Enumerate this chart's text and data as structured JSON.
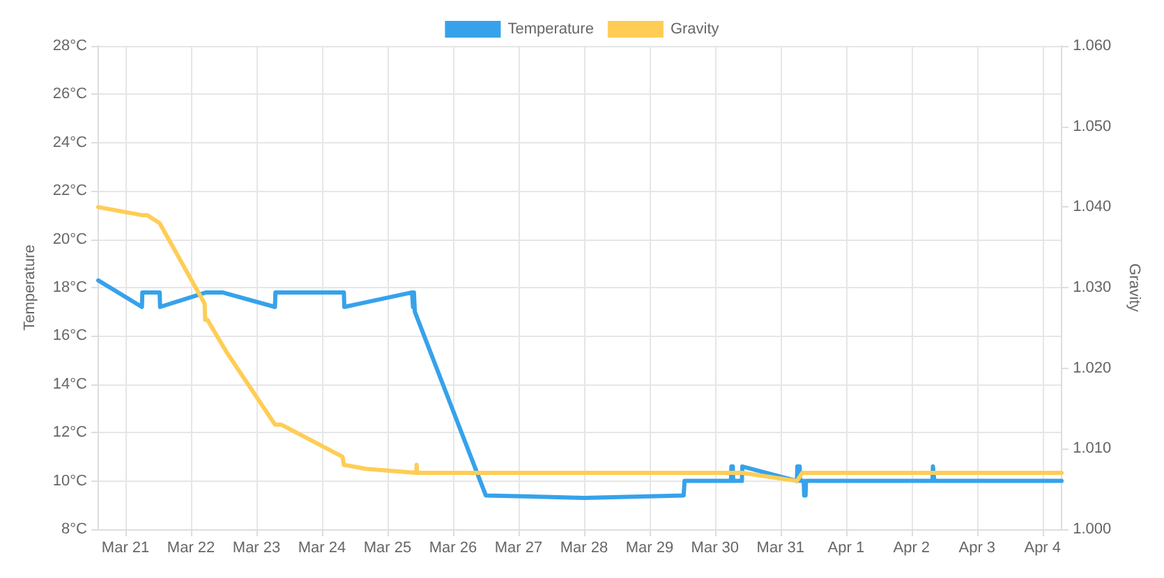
{
  "chart_data": {
    "type": "line",
    "ylabel": "Temperature",
    "y2label": "Gravity",
    "legend": "top",
    "grid": true,
    "marker": "none",
    "line_style": "solid",
    "xlim": [
      "--03-20T14:00",
      "--04-04T07:00"
    ],
    "xticks": [
      {
        "value": "--03-21",
        "label": "Mar 21"
      },
      {
        "value": "--03-22",
        "label": "Mar 22"
      },
      {
        "value": "--03-23",
        "label": "Mar 23"
      },
      {
        "value": "--03-24",
        "label": "Mar 24"
      },
      {
        "value": "--03-25",
        "label": "Mar 25"
      },
      {
        "value": "--03-26",
        "label": "Mar 26"
      },
      {
        "value": "--03-27",
        "label": "Mar 27"
      },
      {
        "value": "--03-28",
        "label": "Mar 28"
      },
      {
        "value": "--03-29",
        "label": "Mar 29"
      },
      {
        "value": "--03-30",
        "label": "Mar 30"
      },
      {
        "value": "--03-31",
        "label": "Mar 31"
      },
      {
        "value": "--04-01",
        "label": "Apr 1"
      },
      {
        "value": "--04-02",
        "label": "Apr 2"
      },
      {
        "value": "--04-03",
        "label": "Apr 3"
      },
      {
        "value": "--04-04",
        "label": "Apr 4"
      }
    ],
    "ylim": [
      8,
      28
    ],
    "yticks": [
      {
        "value": 8,
        "label": "8°C"
      },
      {
        "value": 10,
        "label": "10°C"
      },
      {
        "value": 12,
        "label": "12°C"
      },
      {
        "value": 14,
        "label": "14°C"
      },
      {
        "value": 16,
        "label": "16°C"
      },
      {
        "value": 18,
        "label": "18°C"
      },
      {
        "value": 20,
        "label": "20°C"
      },
      {
        "value": 22,
        "label": "22°C"
      },
      {
        "value": 24,
        "label": "24°C"
      },
      {
        "value": 26,
        "label": "26°C"
      },
      {
        "value": 28,
        "label": "28°C"
      }
    ],
    "y2lim": [
      1.0,
      1.06
    ],
    "y2ticks": [
      {
        "value": 1.0,
        "label": "1.000"
      },
      {
        "value": 1.01,
        "label": "1.010"
      },
      {
        "value": 1.02,
        "label": "1.020"
      },
      {
        "value": 1.03,
        "label": "1.030"
      },
      {
        "value": 1.04,
        "label": "1.040"
      },
      {
        "value": 1.05,
        "label": "1.050"
      },
      {
        "value": 1.06,
        "label": "1.060"
      }
    ],
    "series": [
      {
        "name": "Temperature",
        "color": "#36a2eb",
        "x": [
          "--03-20T14:00",
          "--03-21T06:00",
          "--03-21T06:10",
          "--03-21T12:30",
          "--03-21T12:40",
          "--03-22T05:30",
          "--03-22T11:30",
          "--03-23T06:45",
          "--03-23T06:55",
          "--03-24T08:00",
          "--03-24T08:10",
          "--03-25T09:00",
          "--03-25T09:20",
          "--03-25T09:40",
          "--03-25T10:00",
          "--03-26T12:00",
          "--03-28T00:00",
          "--03-29T12:30",
          "--03-29T12:50",
          "--03-30T05:50",
          "--03-30T06:00",
          "--03-30T06:30",
          "--03-30T06:40",
          "--03-30T09:50",
          "--03-30T10:00",
          "--03-31T06:00",
          "--03-31T06:10",
          "--03-31T07:00",
          "--03-31T07:10",
          "--03-31T08:30",
          "--03-31T08:40",
          "--03-31T09:10",
          "--03-31T09:20",
          "--04-02T07:40",
          "--04-02T07:50",
          "--04-02T08:10",
          "--04-02T08:20",
          "--04-04T07:00"
        ],
        "values": [
          18.3,
          17.2,
          17.8,
          17.8,
          17.2,
          17.8,
          17.8,
          17.2,
          17.8,
          17.8,
          17.2,
          17.8,
          17.2,
          17.8,
          17.0,
          9.4,
          9.3,
          9.4,
          10.0,
          10.0,
          10.6,
          10.6,
          10.0,
          10.0,
          10.6,
          10.0,
          10.6,
          10.6,
          10.0,
          10.0,
          9.4,
          9.4,
          10.0,
          10.0,
          10.6,
          10.6,
          10.0,
          10.0
        ]
      },
      {
        "name": "Gravity",
        "color": "#ffcd56",
        "axis": "y2",
        "x": [
          "--03-20T14:00",
          "--03-21T06:00",
          "--03-21T08:00",
          "--03-21T12:30",
          "--03-22T05:00",
          "--03-22T05:10",
          "--03-22T06:00",
          "--03-22T13:00",
          "--03-23T06:45",
          "--03-23T09:00",
          "--03-24T07:30",
          "--03-24T08:00",
          "--03-24T16:00",
          "--03-25T10:30",
          "--03-25T10:40",
          "--03-25T10:50",
          "--03-30T10:00",
          "--03-31T06:00",
          "--03-31T08:00",
          "--04-04T07:00"
        ],
        "values": [
          1.04,
          1.039,
          1.039,
          1.038,
          1.028,
          1.026,
          1.026,
          1.022,
          1.013,
          1.013,
          1.009,
          1.008,
          1.0075,
          1.007,
          1.008,
          1.007,
          1.007,
          1.006,
          1.007,
          1.007
        ]
      }
    ]
  }
}
